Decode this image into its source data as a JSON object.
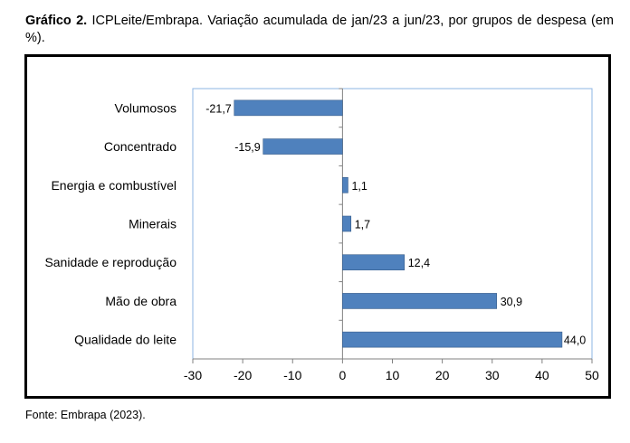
{
  "caption": {
    "bold": "Gráfico 2.",
    "text": "ICPLeite/Embrapa. Variação acumulada de jan/23 a jun/23, por grupos de despesa (em %)."
  },
  "source": "Fonte: Embrapa (2023).",
  "chart_data": {
    "type": "bar",
    "orientation": "horizontal",
    "title": "",
    "categories": [
      "Volumosos",
      "Concentrado",
      "Energia e combustível",
      "Minerais",
      "Sanidade e reprodução",
      "Mão de obra",
      "Qualidade do leite"
    ],
    "values": [
      -21.7,
      -15.9,
      1.1,
      1.7,
      12.4,
      30.9,
      44.0
    ],
    "value_labels": [
      "-21,7",
      "-15,9",
      "1,1",
      "1,7",
      "12,4",
      "30,9",
      "44,0"
    ],
    "xlim": [
      -30,
      50
    ],
    "xticks": [
      -30,
      -20,
      -10,
      0,
      10,
      20,
      30,
      40,
      50
    ],
    "xlabel": "",
    "ylabel": "",
    "bar_color": "#4f81bd",
    "legend": "none"
  }
}
